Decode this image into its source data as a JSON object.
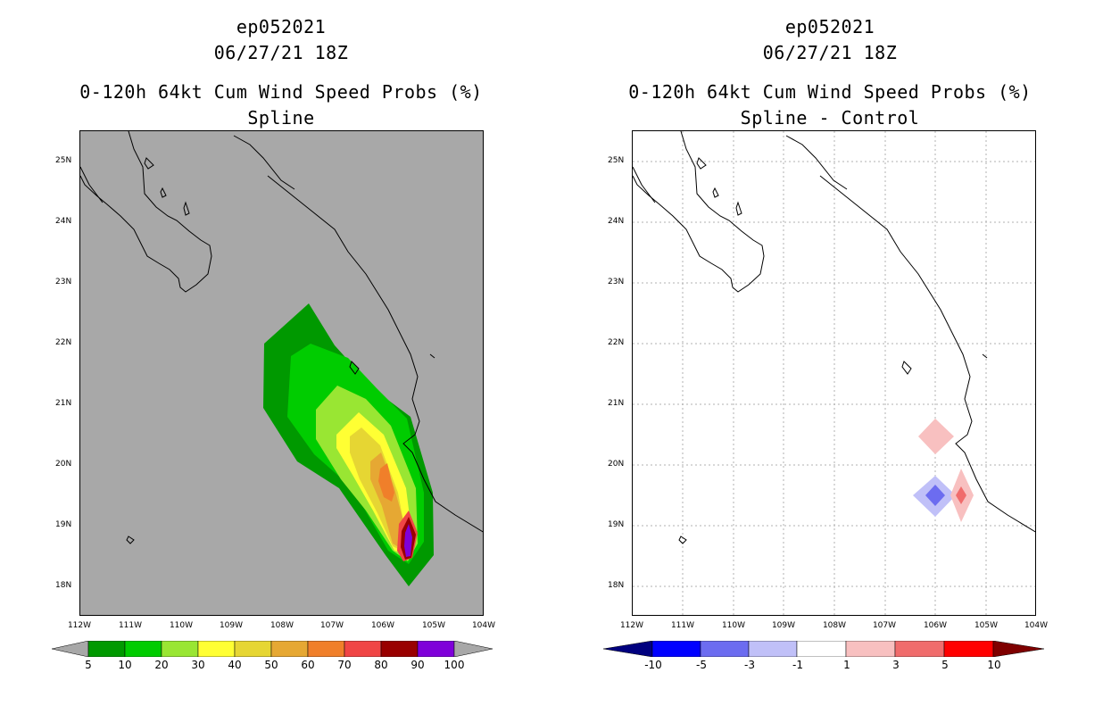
{
  "left_panel": {
    "storm_id": "ep052021",
    "datetime": "06/27/21 18Z",
    "title": "0-120h 64kt Cum Wind Speed Probs (%)",
    "subtitle": "Spline",
    "background_color": "#a8a8a8",
    "colorbar": {
      "labels": [
        "5",
        "10",
        "20",
        "30",
        "40",
        "50",
        "60",
        "70",
        "80",
        "90",
        "100"
      ],
      "colors": [
        "#009900",
        "#00cc00",
        "#99e633",
        "#ffff33",
        "#e6d633",
        "#e6a833",
        "#f07f2a",
        "#f04545",
        "#990000",
        "#7f00d9"
      ]
    }
  },
  "right_panel": {
    "storm_id": "ep052021",
    "datetime": "06/27/21 18Z",
    "title": "0-120h 64kt Cum Wind Speed Probs (%)",
    "subtitle": "Spline - Control",
    "background_color": "#ffffff",
    "colorbar": {
      "labels": [
        "-10",
        "-5",
        "-3",
        "-1",
        "1",
        "3",
        "5",
        "10"
      ],
      "colors": [
        "#0000ff",
        "#6c6cf0",
        "#c0c0f8",
        "#ffffff",
        "#f8c0c0",
        "#f06c6c",
        "#ff0000"
      ]
    }
  },
  "lat_labels": [
    "25N",
    "24N",
    "23N",
    "22N",
    "21N",
    "20N",
    "19N",
    "18N"
  ],
  "lon_labels": [
    "112W",
    "111W",
    "110W",
    "109W",
    "108W",
    "107W",
    "106W",
    "105W",
    "104W"
  ]
}
